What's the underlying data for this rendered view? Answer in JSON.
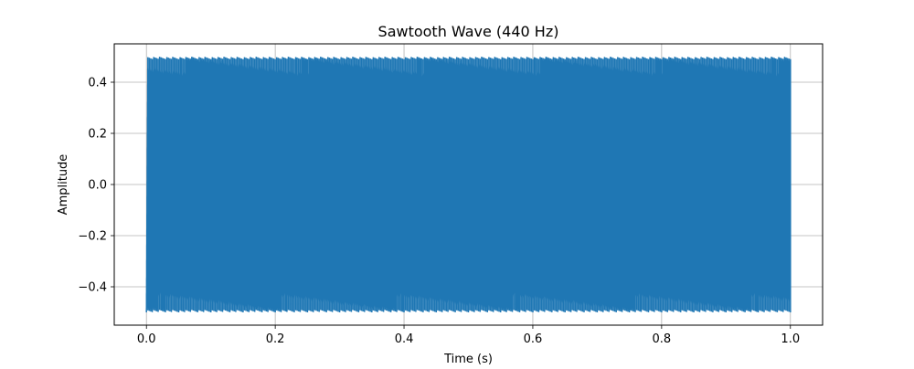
{
  "chart_data": {
    "type": "line",
    "title": "Sawtooth Wave (440 Hz)",
    "xlabel": "Time (s)",
    "ylabel": "Amplitude",
    "xlim": [
      -0.05,
      1.05
    ],
    "ylim": [
      -0.55,
      0.55
    ],
    "xticks": [
      0.0,
      0.2,
      0.4,
      0.6,
      0.8,
      1.0
    ],
    "xtick_labels": [
      "0.0",
      "0.2",
      "0.4",
      "0.6",
      "0.8",
      "1.0"
    ],
    "yticks": [
      -0.4,
      -0.2,
      0.0,
      0.2,
      0.4
    ],
    "ytick_labels": [
      "−0.4",
      "−0.2",
      "0.0",
      "0.2",
      "0.4"
    ],
    "grid": true,
    "series": [
      {
        "color": "#1f77b4",
        "frequency_hz": 440,
        "x_start": 0.0,
        "x_end": 1.0,
        "amplitude_min": -0.5,
        "amplitude_max": 0.5
      }
    ]
  }
}
